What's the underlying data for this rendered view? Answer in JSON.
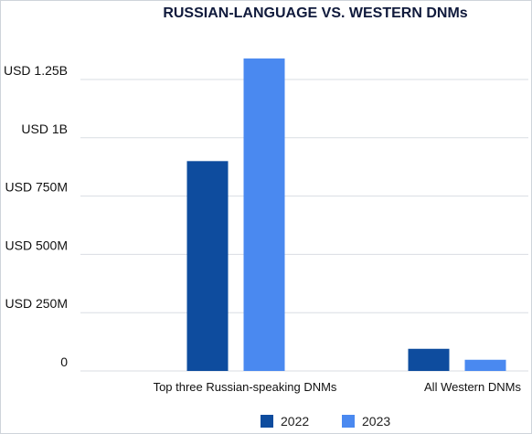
{
  "chart_data": {
    "type": "bar",
    "title": "RUSSIAN-LANGUAGE VS. WESTERN DNMs",
    "xlabel": "",
    "ylabel": "",
    "categories": [
      "Top three Russian-speaking DNMs",
      "All Western DNMs"
    ],
    "series": [
      {
        "name": "2022",
        "color": "#0e4c9e",
        "values": [
          900,
          95
        ]
      },
      {
        "name": "2023",
        "color": "#4a89f0",
        "values": [
          1340,
          48
        ]
      }
    ],
    "value_unit": "USD millions",
    "yticks": [
      {
        "value": 0,
        "label": "0"
      },
      {
        "value": 250,
        "label": "USD 250M"
      },
      {
        "value": 500,
        "label": "USD 500M"
      },
      {
        "value": 750,
        "label": "USD 750M"
      },
      {
        "value": 1000,
        "label": "USD 1B"
      },
      {
        "value": 1250,
        "label": "USD 1.25B"
      }
    ],
    "ylim": [
      0,
      1250
    ],
    "grid": true,
    "legend_position": "bottom"
  }
}
